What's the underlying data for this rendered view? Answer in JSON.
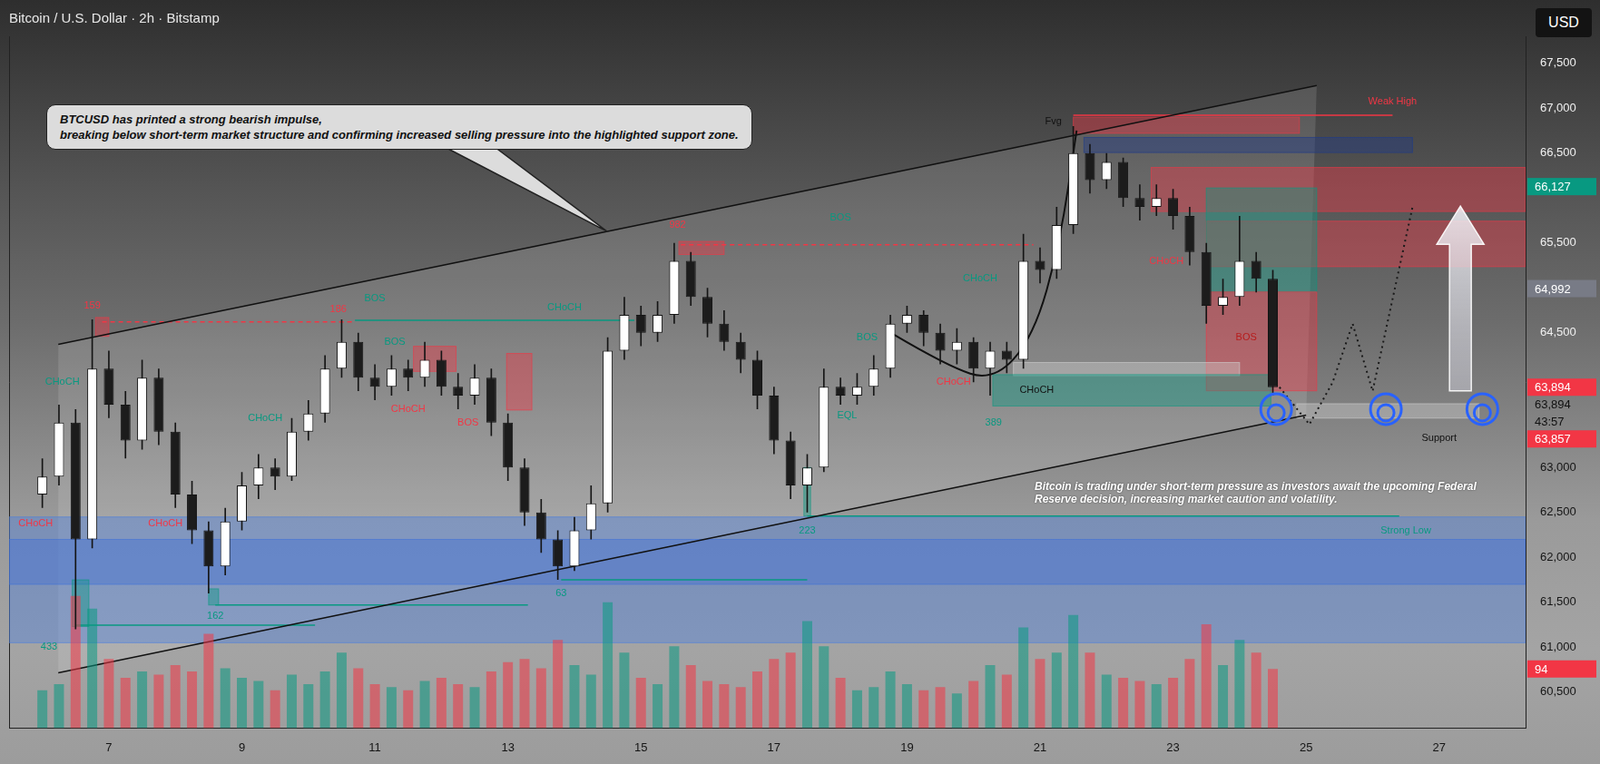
{
  "chart_data": {
    "type": "candlestick",
    "title": "Bitcoin / U.S. Dollar · 2h · Bitstamp",
    "currency": "USD",
    "callout": "BTCUSD has printed a strong bearish impulse,\nbreaking below short-term market structure and confirming increased selling pressure into the highlighted support zone.",
    "note": "Bitcoin is trading under short-term pressure as investors await the upcoming Federal Reserve decision, increasing market caution and volatility.",
    "x": [
      6,
      6.25,
      6.5,
      6.75,
      7,
      7.25,
      7.5,
      7.75,
      8,
      8.25,
      8.5,
      8.75,
      9,
      9.25,
      9.5,
      9.75,
      10,
      10.25,
      10.5,
      10.75,
      11,
      11.25,
      11.5,
      11.75,
      12,
      12.25,
      12.5,
      12.75,
      13,
      13.25,
      13.5,
      13.75,
      14,
      14.25,
      14.5,
      14.75,
      15,
      15.25,
      15.5,
      15.75,
      16,
      16.25,
      16.5,
      16.75,
      17,
      17.25,
      17.5,
      17.75,
      18,
      18.25,
      18.5,
      18.75,
      19,
      19.25,
      19.5,
      19.75,
      20,
      20.25,
      20.5,
      20.75,
      21,
      21.25,
      21.5,
      21.75,
      22,
      22.25,
      22.5,
      22.75,
      23,
      23.25,
      23.5,
      23.75,
      24,
      24.25,
      24.5
    ],
    "series": [
      {
        "type": "candlestick",
        "color": "#ffffff",
        "ohlc": [
          [
            62700,
            63100,
            62550,
            62900
          ],
          [
            62900,
            63700,
            62800,
            63500
          ],
          [
            63500,
            63650,
            61200,
            62200
          ],
          [
            62200,
            64650,
            62100,
            64100
          ],
          [
            64100,
            64300,
            63550,
            63700
          ],
          [
            63700,
            63850,
            63100,
            63300
          ],
          [
            63300,
            64200,
            63200,
            64000
          ],
          [
            64000,
            64100,
            63250,
            63400
          ],
          [
            63400,
            63500,
            62550,
            62700
          ],
          [
            62700,
            62850,
            62150,
            62300
          ],
          [
            62300,
            62400,
            61600,
            61900
          ],
          [
            61900,
            62550,
            61800,
            62400
          ],
          [
            62400,
            62950,
            62300,
            62800
          ],
          [
            62800,
            63150,
            62650,
            63000
          ],
          [
            63000,
            63100,
            62750,
            62900
          ],
          [
            62900,
            63550,
            62850,
            63400
          ],
          [
            63400,
            63750,
            63300,
            63600
          ],
          [
            63600,
            64250,
            63500,
            64100
          ],
          [
            64100,
            64650,
            64000,
            64400
          ],
          [
            64400,
            64500,
            63850,
            64000
          ],
          [
            64000,
            64150,
            63750,
            63900
          ],
          [
            63900,
            64250,
            63800,
            64100
          ],
          [
            64100,
            64200,
            63850,
            64000
          ],
          [
            64000,
            64400,
            63900,
            64200
          ],
          [
            64200,
            64300,
            63800,
            63900
          ],
          [
            63900,
            64050,
            63650,
            63800
          ],
          [
            63800,
            64150,
            63700,
            64000
          ],
          [
            64000,
            64100,
            63350,
            63500
          ],
          [
            63500,
            63600,
            62850,
            63000
          ],
          [
            63000,
            63100,
            62350,
            62500
          ],
          [
            62500,
            62650,
            62050,
            62200
          ],
          [
            62200,
            62300,
            61750,
            61900
          ],
          [
            61900,
            62450,
            61850,
            62300
          ],
          [
            62300,
            62800,
            62200,
            62600
          ],
          [
            62600,
            64450,
            62500,
            64300
          ],
          [
            64300,
            64900,
            64200,
            64700
          ],
          [
            64700,
            64800,
            64350,
            64500
          ],
          [
            64500,
            64850,
            64400,
            64700
          ],
          [
            64700,
            65500,
            64600,
            65300
          ],
          [
            65300,
            65400,
            64800,
            64900
          ],
          [
            64900,
            65000,
            64450,
            64600
          ],
          [
            64600,
            64750,
            64300,
            64400
          ],
          [
            64400,
            64500,
            64050,
            64200
          ],
          [
            64200,
            64300,
            63650,
            63800
          ],
          [
            63800,
            63900,
            63150,
            63300
          ],
          [
            63300,
            63400,
            62650,
            62800
          ],
          [
            62800,
            63150,
            62500,
            63000
          ],
          [
            63000,
            64100,
            62950,
            63900
          ],
          [
            63900,
            64000,
            63700,
            63800
          ],
          [
            63800,
            64050,
            63700,
            63900
          ],
          [
            63900,
            64250,
            63800,
            64100
          ],
          [
            64100,
            64700,
            64000,
            64600
          ],
          [
            64600,
            64800,
            64500,
            64700
          ],
          [
            64700,
            64750,
            64350,
            64500
          ],
          [
            64500,
            64600,
            64150,
            64300
          ],
          [
            64300,
            64550,
            64150,
            64400
          ],
          [
            64400,
            64450,
            63950,
            64100
          ],
          [
            64100,
            64400,
            63800,
            64300
          ],
          [
            64300,
            64400,
            64050,
            64200
          ],
          [
            64200,
            65600,
            64100,
            65300
          ],
          [
            65300,
            65450,
            65050,
            65200
          ],
          [
            65200,
            65900,
            65100,
            65700
          ],
          [
            65700,
            66800,
            65600,
            66500
          ],
          [
            66500,
            66600,
            66050,
            66200
          ],
          [
            66200,
            66500,
            66100,
            66400
          ],
          [
            66400,
            66450,
            65900,
            66000
          ],
          [
            66000,
            66150,
            65750,
            65900
          ],
          [
            65900,
            66150,
            65800,
            66000
          ],
          [
            66000,
            66100,
            65650,
            65800
          ],
          [
            65800,
            65900,
            65250,
            65400
          ],
          [
            65400,
            65500,
            64600,
            64800
          ],
          [
            64800,
            65100,
            64700,
            64900
          ],
          [
            64900,
            65800,
            64800,
            65300
          ],
          [
            65300,
            65400,
            64950,
            65100
          ],
          [
            65100,
            65200,
            63800,
            63894
          ]
        ]
      },
      {
        "type": "bar",
        "axis": "y2",
        "values": [
          60,
          70,
          210,
          190,
          110,
          80,
          90,
          85,
          100,
          90,
          150,
          95,
          80,
          75,
          60,
          85,
          70,
          90,
          120,
          95,
          70,
          65,
          60,
          75,
          80,
          70,
          65,
          90,
          105,
          110,
          95,
          140,
          100,
          85,
          200,
          120,
          80,
          70,
          130,
          100,
          75,
          70,
          65,
          90,
          110,
          120,
          170,
          130,
          80,
          60,
          65,
          90,
          70,
          60,
          65,
          55,
          75,
          100,
          85,
          160,
          110,
          120,
          180,
          120,
          85,
          80,
          75,
          70,
          80,
          110,
          165,
          100,
          140,
          120,
          94
        ]
      }
    ],
    "xlim": [
      5.5,
      28.3
    ],
    "xticks": [
      7,
      9,
      11,
      13,
      15,
      17,
      19,
      21,
      23,
      25,
      27
    ],
    "ylim": [
      60100,
      67800
    ],
    "yticks": [
      {
        "value": 60500,
        "label": "60,500"
      },
      {
        "value": 61000,
        "label": "61,000"
      },
      {
        "value": 61500,
        "label": "61,500"
      },
      {
        "value": 62000,
        "label": "62,000"
      },
      {
        "value": 62500,
        "label": "62,500"
      },
      {
        "value": 63000,
        "label": "63,000"
      },
      {
        "value": 64500,
        "label": "64,500"
      },
      {
        "value": 65500,
        "label": "65,500"
      },
      {
        "value": 66500,
        "label": "66,500"
      },
      {
        "value": 67000,
        "label": "67,000"
      },
      {
        "value": 67500,
        "label": "67,500"
      }
    ],
    "y2lim": [
      0,
      1100
    ],
    "grid": false,
    "price_labels": [
      {
        "value": 66127,
        "text": "66,127",
        "color": "#089981"
      },
      {
        "value": 64992,
        "text": "64,992",
        "color": "#787b86"
      },
      {
        "value": 63894,
        "text": "63,894",
        "color": "#f23645"
      },
      {
        "value": 63894,
        "text": "63,894"
      },
      {
        "text": "43:57"
      },
      {
        "value": 63857,
        "text": "63,857",
        "color": "#f23645"
      },
      {
        "value": 94,
        "text": "94",
        "color": "#f23645",
        "axis": "y2"
      }
    ],
    "channel": {
      "upper": [
        [
          6.24,
          64372
        ],
        [
          25.16,
          67252
        ]
      ],
      "lower": [
        [
          6.24,
          60715
        ],
        [
          25.0,
          63584
        ]
      ]
    },
    "zones": [
      {
        "x0": 5.5,
        "x1": 28.3,
        "y0": 61050,
        "y1": 62450,
        "color": "#4a7fe0"
      },
      {
        "x0": 5.5,
        "x1": 28.3,
        "y0": 61700,
        "y1": 62200,
        "color": "#3f6fd8"
      },
      {
        "x0": 22.67,
        "x1": 28.3,
        "y0": 65850,
        "y1": 66340,
        "color": "#f23645"
      },
      {
        "x0": 23.5,
        "x1": 28.3,
        "y0": 65236,
        "y1": 65742,
        "color": "#f23645"
      },
      {
        "x0": 23.5,
        "x1": 25.16,
        "y0": 64955,
        "y1": 66112,
        "color": "#089981"
      },
      {
        "x0": 23.5,
        "x1": 25.16,
        "y0": 63854,
        "y1": 64955,
        "color": "#f23645"
      },
      {
        "x0": 21.5,
        "x1": 24.9,
        "y0": 66720,
        "y1": 66900,
        "color": "#f23645"
      },
      {
        "x0": 21.66,
        "x1": 26.6,
        "y0": 66506,
        "y1": 66674,
        "color": "#1e3a8a"
      },
      {
        "x0": 20.6,
        "x1": 24.0,
        "y0": 64023,
        "y1": 64169,
        "color": "#d0d0d0"
      },
      {
        "x0": 20.29,
        "x1": 24.47,
        "y0": 63685,
        "y1": 64034,
        "color": "#089981"
      },
      {
        "x0": 24.86,
        "x1": 27.6,
        "y0": 63550,
        "y1": 63710,
        "color": "#d0d0d0"
      },
      {
        "x0": 6.8,
        "x1": 7.0,
        "y0": 64460,
        "y1": 64670,
        "color": "#f23645"
      },
      {
        "x0": 15.57,
        "x1": 16.25,
        "y0": 65371,
        "y1": 65517,
        "color": "#f23645"
      },
      {
        "x0": 11.58,
        "x1": 12.22,
        "y0": 64070,
        "y1": 64350,
        "color": "#f23645"
      },
      {
        "x0": 12.98,
        "x1": 13.36,
        "y0": 63640,
        "y1": 64270,
        "color": "#f23645"
      },
      {
        "x0": 6.45,
        "x1": 6.7,
        "y0": 61230,
        "y1": 61750,
        "color": "#089981"
      },
      {
        "x0": 8.5,
        "x1": 8.65,
        "y0": 61470,
        "y1": 61650,
        "color": "#089981"
      },
      {
        "x0": 17.45,
        "x1": 17.55,
        "y0": 62460,
        "y1": 63000,
        "color": "#089981"
      }
    ],
    "levels": [
      {
        "x0": 6.5,
        "x1": 10.1,
        "y": 61245,
        "color": "#089981",
        "line_style": "solid"
      },
      {
        "x0": 8.6,
        "x1": 13.3,
        "y": 61470,
        "color": "#089981",
        "line_style": "solid"
      },
      {
        "x0": 13.8,
        "x1": 17.5,
        "y": 61750,
        "color": "#089981",
        "line_style": "solid"
      },
      {
        "x0": 17.5,
        "x1": 26.4,
        "y": 62460,
        "color": "#089981",
        "line_style": "solid"
      },
      {
        "x0": 6.9,
        "x1": 10.7,
        "y": 64620,
        "color": "#f23645",
        "line_style": "dashed"
      },
      {
        "x0": 10.7,
        "x1": 14.9,
        "y": 64640,
        "color": "#089981",
        "line_style": "solid"
      },
      {
        "x0": 15.6,
        "x1": 20.9,
        "y": 65480,
        "color": "#f23645",
        "line_style": "dashed"
      },
      {
        "x0": 21.5,
        "x1": 26.3,
        "y": 66921,
        "color": "#f23645",
        "line_style": "solid"
      }
    ],
    "arc": [
      [
        18.8,
        64480
      ],
      [
        19.6,
        64130
      ],
      [
        20.3,
        63960
      ],
      [
        20.9,
        64450
      ],
      [
        21.3,
        65500
      ],
      [
        21.55,
        66750
      ]
    ],
    "projection": [
      [
        24.6,
        63894
      ],
      [
        25.05,
        63480
      ],
      [
        25.4,
        63950
      ],
      [
        25.7,
        64600
      ],
      [
        26.0,
        63850
      ],
      [
        26.6,
        65900
      ]
    ],
    "circles": [
      [
        24.55,
        63650
      ],
      [
        26.2,
        63650
      ],
      [
        27.65,
        63650
      ]
    ],
    "arrow": {
      "x": 27.32,
      "y0": 63854,
      "y1": 65910
    },
    "labels": [
      {
        "text": "159",
        "x": 6.75,
        "y": 64800,
        "color": "#f23645"
      },
      {
        "text": "433",
        "x": 6.1,
        "y": 61000,
        "color": "#089981"
      },
      {
        "text": "CHoCH",
        "x": 6.3,
        "y": 63950,
        "color": "#089981"
      },
      {
        "text": "CHoCH",
        "x": 5.9,
        "y": 62380,
        "color": "#f23645"
      },
      {
        "text": "CHoCH",
        "x": 7.85,
        "y": 62380,
        "color": "#f23645"
      },
      {
        "text": "162",
        "x": 8.6,
        "y": 61350,
        "color": "#089981"
      },
      {
        "text": "CHoCH",
        "x": 9.35,
        "y": 63550,
        "color": "#089981"
      },
      {
        "text": "186",
        "x": 10.45,
        "y": 64760,
        "color": "#f23645"
      },
      {
        "text": "BOS",
        "x": 11.0,
        "y": 64880,
        "color": "#089981"
      },
      {
        "text": "BOS",
        "x": 11.3,
        "y": 64400,
        "color": "#089981"
      },
      {
        "text": "CHoCH",
        "x": 11.5,
        "y": 63650,
        "color": "#f23645"
      },
      {
        "text": "BOS",
        "x": 12.4,
        "y": 63500,
        "color": "#f23645"
      },
      {
        "text": "63",
        "x": 13.8,
        "y": 61600,
        "color": "#089981"
      },
      {
        "text": "CHoCH",
        "x": 13.85,
        "y": 64780,
        "color": "#089981"
      },
      {
        "text": "982",
        "x": 15.55,
        "y": 65700,
        "color": "#f23645"
      },
      {
        "text": "223",
        "x": 17.5,
        "y": 62300,
        "color": "#089981"
      },
      {
        "text": "BOS",
        "x": 18.0,
        "y": 65780,
        "color": "#089981"
      },
      {
        "text": "EQL",
        "x": 18.1,
        "y": 63580,
        "color": "#089981"
      },
      {
        "text": "BOS",
        "x": 18.4,
        "y": 64450,
        "color": "#089981"
      },
      {
        "text": "CHoCH",
        "x": 19.7,
        "y": 63950,
        "color": "#f23645"
      },
      {
        "text": "CHoCH",
        "x": 20.1,
        "y": 65100,
        "color": "#089981"
      },
      {
        "text": "389",
        "x": 20.3,
        "y": 63500,
        "color": "#089981"
      },
      {
        "text": "CHoCH",
        "x": 20.95,
        "y": 63860,
        "color": "#111111"
      },
      {
        "text": "Fvg",
        "x": 21.2,
        "y": 66850,
        "color": "#111111"
      },
      {
        "text": "CHoCH",
        "x": 22.9,
        "y": 65300,
        "color": "#f23645"
      },
      {
        "text": "BOS",
        "x": 24.1,
        "y": 64450,
        "color": "#b71c1c"
      },
      {
        "text": "Weak High",
        "x": 26.3,
        "y": 67070,
        "color": "#f23645"
      },
      {
        "text": "Support",
        "x": 27.0,
        "y": 63330,
        "color": "#111111"
      },
      {
        "text": "Strong Low",
        "x": 26.5,
        "y": 62300,
        "color": "#089981"
      }
    ]
  }
}
